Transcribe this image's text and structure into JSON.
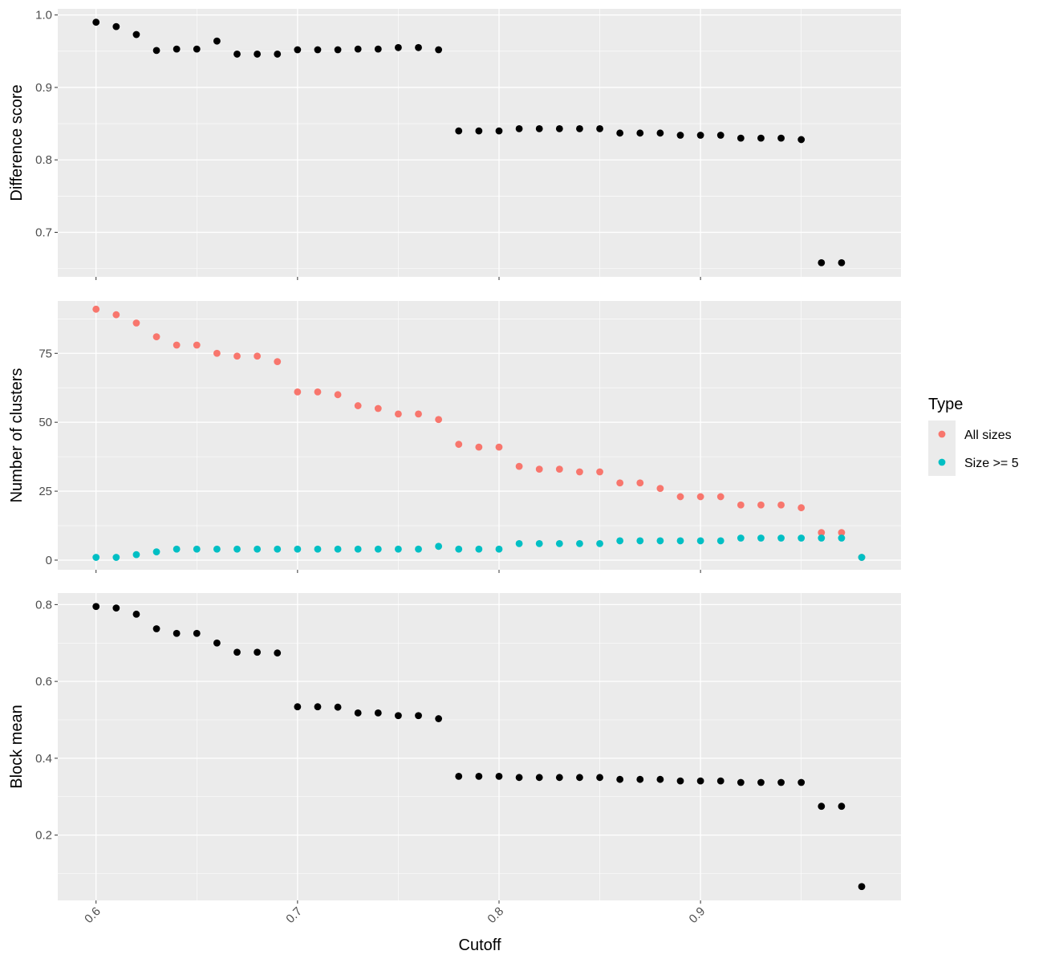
{
  "chart_data": {
    "type": "scatter",
    "xlabel": "Cutoff",
    "x_ticks": [
      "0.6",
      "0.7",
      "0.8",
      "0.9"
    ],
    "x_tick_values": [
      0.6,
      0.7,
      0.8,
      0.9
    ],
    "xlim": [
      0.581,
      0.9995
    ],
    "colors": {
      "black": "#000000",
      "all_sizes": "#F8766D",
      "size5": "#00BFC4",
      "panel_bg": "#EBEBEB",
      "grid": "#FFFFFF"
    },
    "legend": {
      "title": "Type",
      "placement": "right",
      "items": [
        {
          "label": "All sizes",
          "color": "#F8766D"
        },
        {
          "label": "Size >= 5",
          "color": "#00BFC4"
        }
      ]
    },
    "panels": [
      {
        "ylabel": "Difference score",
        "ylim": [
          0.6385,
          1.0085
        ],
        "y_ticks": [
          "0.7",
          "0.8",
          "0.9",
          "1.0"
        ],
        "y_tick_values": [
          0.7,
          0.8,
          0.9,
          1.0
        ],
        "series": [
          {
            "color": "#000000",
            "x": [
              0.6,
              0.61,
              0.62,
              0.63,
              0.64,
              0.65,
              0.66,
              0.67,
              0.68,
              0.69,
              0.7,
              0.71,
              0.72,
              0.73,
              0.74,
              0.75,
              0.76,
              0.77,
              0.78,
              0.79,
              0.8,
              0.81,
              0.82,
              0.83,
              0.84,
              0.85,
              0.86,
              0.87,
              0.88,
              0.89,
              0.9,
              0.91,
              0.92,
              0.93,
              0.94,
              0.95,
              0.96,
              0.97
            ],
            "y": [
              0.99,
              0.984,
              0.973,
              0.951,
              0.953,
              0.953,
              0.964,
              0.946,
              0.946,
              0.946,
              0.952,
              0.952,
              0.952,
              0.953,
              0.953,
              0.955,
              0.955,
              0.952,
              0.84,
              0.84,
              0.84,
              0.843,
              0.843,
              0.843,
              0.843,
              0.843,
              0.837,
              0.837,
              0.837,
              0.834,
              0.834,
              0.834,
              0.83,
              0.83,
              0.83,
              0.828,
              0.658,
              0.658
            ]
          }
        ]
      },
      {
        "ylabel": "Number of clusters",
        "ylim": [
          -3.5,
          94.0
        ],
        "y_ticks": [
          "0",
          "25",
          "50",
          "75"
        ],
        "y_tick_values": [
          0,
          25,
          50,
          75
        ],
        "series": [
          {
            "name": "All sizes",
            "color": "#F8766D",
            "x": [
              0.6,
              0.61,
              0.62,
              0.63,
              0.64,
              0.65,
              0.66,
              0.67,
              0.68,
              0.69,
              0.7,
              0.71,
              0.72,
              0.73,
              0.74,
              0.75,
              0.76,
              0.77,
              0.78,
              0.79,
              0.8,
              0.81,
              0.82,
              0.83,
              0.84,
              0.85,
              0.86,
              0.87,
              0.88,
              0.89,
              0.9,
              0.91,
              0.92,
              0.93,
              0.94,
              0.95,
              0.96,
              0.97,
              0.98
            ],
            "y": [
              91,
              89,
              86,
              81,
              78,
              78,
              75,
              74,
              74,
              72,
              61,
              61,
              60,
              56,
              55,
              53,
              53,
              51,
              42,
              41,
              41,
              34,
              33,
              33,
              32,
              32,
              28,
              28,
              26,
              23,
              23,
              23,
              20,
              20,
              20,
              19,
              10,
              10,
              1
            ]
          },
          {
            "name": "Size >= 5",
            "color": "#00BFC4",
            "x": [
              0.6,
              0.61,
              0.62,
              0.63,
              0.64,
              0.65,
              0.66,
              0.67,
              0.68,
              0.69,
              0.7,
              0.71,
              0.72,
              0.73,
              0.74,
              0.75,
              0.76,
              0.77,
              0.78,
              0.79,
              0.8,
              0.81,
              0.82,
              0.83,
              0.84,
              0.85,
              0.86,
              0.87,
              0.88,
              0.89,
              0.9,
              0.91,
              0.92,
              0.93,
              0.94,
              0.95,
              0.96,
              0.97,
              0.98
            ],
            "y": [
              1,
              1,
              2,
              3,
              4,
              4,
              4,
              4,
              4,
              4,
              4,
              4,
              4,
              4,
              4,
              4,
              4,
              5,
              4,
              4,
              4,
              6,
              6,
              6,
              6,
              6,
              7,
              7,
              7,
              7,
              7,
              7,
              8,
              8,
              8,
              8,
              8,
              8,
              1
            ]
          }
        ]
      },
      {
        "ylabel": "Block mean",
        "ylim": [
          0.03,
          0.83
        ],
        "y_ticks": [
          "0.2",
          "0.4",
          "0.6",
          "0.8"
        ],
        "y_tick_values": [
          0.2,
          0.4,
          0.6,
          0.8
        ],
        "series": [
          {
            "color": "#000000",
            "x": [
              0.6,
              0.61,
              0.62,
              0.63,
              0.64,
              0.65,
              0.66,
              0.67,
              0.68,
              0.69,
              0.7,
              0.71,
              0.72,
              0.73,
              0.74,
              0.75,
              0.76,
              0.77,
              0.78,
              0.79,
              0.8,
              0.81,
              0.82,
              0.83,
              0.84,
              0.85,
              0.86,
              0.87,
              0.88,
              0.89,
              0.9,
              0.91,
              0.92,
              0.93,
              0.94,
              0.95,
              0.96,
              0.97,
              0.98
            ],
            "y": [
              0.795,
              0.791,
              0.775,
              0.737,
              0.725,
              0.725,
              0.7,
              0.676,
              0.676,
              0.674,
              0.534,
              0.534,
              0.533,
              0.518,
              0.518,
              0.511,
              0.511,
              0.503,
              0.353,
              0.353,
              0.353,
              0.35,
              0.35,
              0.35,
              0.35,
              0.35,
              0.345,
              0.345,
              0.345,
              0.341,
              0.341,
              0.341,
              0.337,
              0.337,
              0.337,
              0.337,
              0.275,
              0.275,
              0.066
            ]
          }
        ]
      }
    ]
  }
}
